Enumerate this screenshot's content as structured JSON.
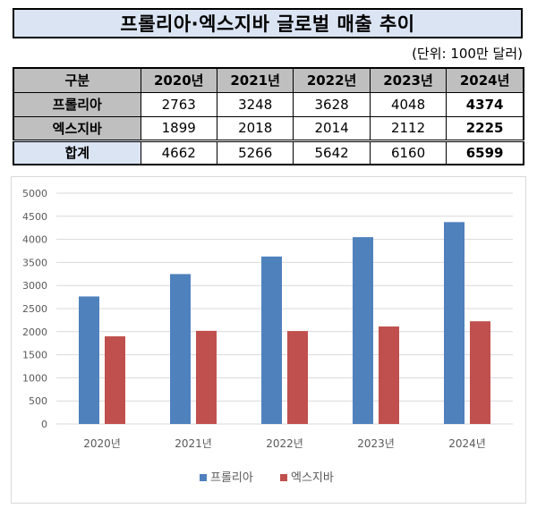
{
  "title": "프롤리아·엑스지바 글로벌 매출 추이",
  "unit_note": "(단위: 100만 달러)",
  "table": {
    "header": [
      "구분",
      "2020년",
      "2021년",
      "2022년",
      "2023년",
      "2024년"
    ],
    "rows": [
      {
        "label": "프롤리아",
        "values": [
          "2763",
          "3248",
          "3628",
          "4048",
          "4374"
        ]
      },
      {
        "label": "엑스지바",
        "values": [
          "1899",
          "2018",
          "2014",
          "2112",
          "2225"
        ]
      },
      {
        "label": "합계",
        "values": [
          "4662",
          "5266",
          "5642",
          "6160",
          "6599"
        ]
      }
    ]
  },
  "chart_data": {
    "type": "bar",
    "categories": [
      "2020년",
      "2021년",
      "2022년",
      "2023년",
      "2024년"
    ],
    "series": [
      {
        "name": "프롤리아",
        "values": [
          2763,
          3248,
          3628,
          4048,
          4374
        ],
        "color": "#4f81bd"
      },
      {
        "name": "엑스지바",
        "values": [
          1899,
          2018,
          2014,
          2112,
          2225
        ],
        "color": "#c0504d"
      }
    ],
    "ylim": [
      0,
      5000
    ],
    "yticks": [
      0,
      500,
      1000,
      1500,
      2000,
      2500,
      3000,
      3500,
      4000,
      4500,
      5000
    ],
    "grid": true,
    "legend": "bottom"
  }
}
